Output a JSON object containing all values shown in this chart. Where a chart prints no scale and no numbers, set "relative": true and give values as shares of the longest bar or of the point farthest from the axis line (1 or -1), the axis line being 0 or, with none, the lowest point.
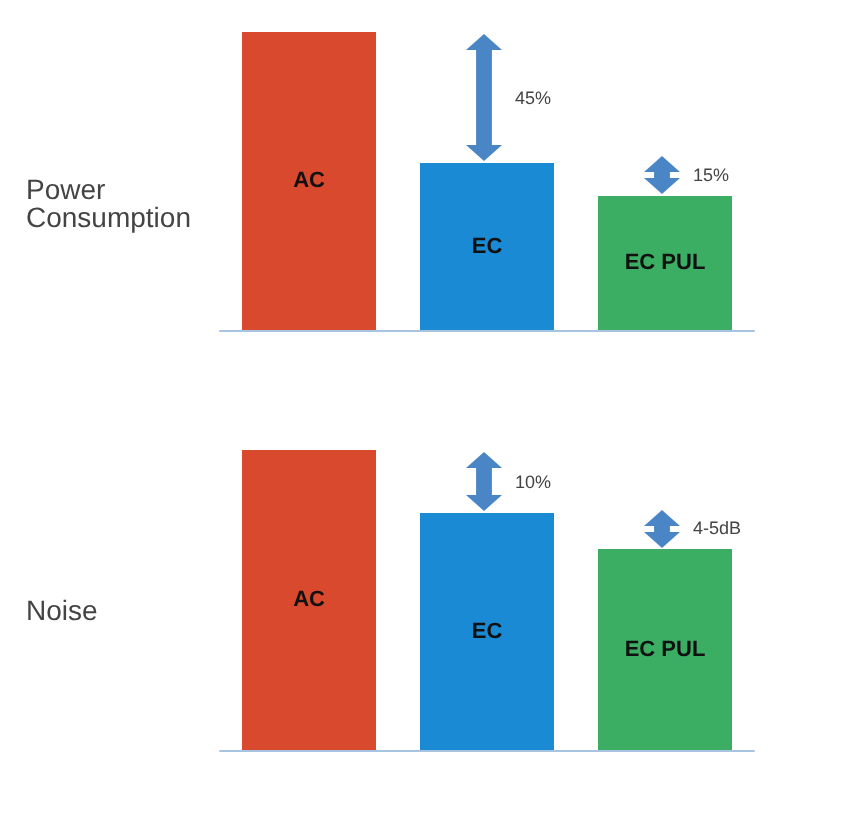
{
  "chart_data": [
    {
      "type": "bar",
      "title": "Power Consumption",
      "relative": true,
      "categories": [
        "AC",
        "EC",
        "EC PUL"
      ],
      "values": [
        1,
        0.56,
        0.45
      ],
      "colors": [
        "#d9492e",
        "#1a8ad4",
        "#3cae63"
      ],
      "tick_labels": false,
      "annotations": [
        "45%",
        "15%"
      ]
    },
    {
      "type": "bar",
      "title": "Noise",
      "relative": true,
      "categories": [
        "AC",
        "EC",
        "EC PUL"
      ],
      "values": [
        1,
        0.79,
        0.67
      ],
      "colors": [
        "#d9492e",
        "#1a8ad4",
        "#3cae63"
      ],
      "tick_labels": false,
      "annotations": [
        "10%",
        "4-5dB"
      ]
    }
  ]
}
